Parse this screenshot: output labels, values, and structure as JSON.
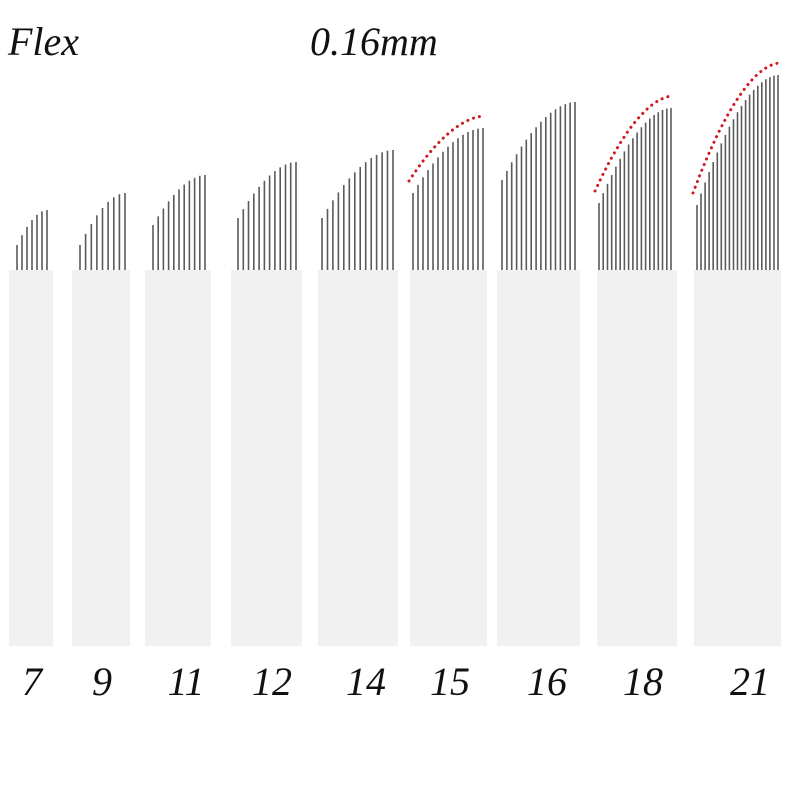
{
  "header": {
    "series_label": "Flex",
    "diameter_label": "0.16mm"
  },
  "blades": [
    {
      "label": "7",
      "pins": 7,
      "curved_highlight": false
    },
    {
      "label": "9",
      "pins": 9,
      "curved_highlight": false
    },
    {
      "label": "11",
      "pins": 11,
      "curved_highlight": false
    },
    {
      "label": "12",
      "pins": 12,
      "curved_highlight": false
    },
    {
      "label": "14",
      "pins": 14,
      "curved_highlight": false
    },
    {
      "label": "15",
      "pins": 15,
      "curved_highlight": true
    },
    {
      "label": "16",
      "pins": 16,
      "curved_highlight": false
    },
    {
      "label": "18",
      "pins": 18,
      "curved_highlight": true
    },
    {
      "label": "21",
      "pins": 21,
      "curved_highlight": true
    }
  ],
  "colors": {
    "blade": "#f1f1f2",
    "needle": "#5a5a5a",
    "highlight_dots": "#d0191f"
  }
}
